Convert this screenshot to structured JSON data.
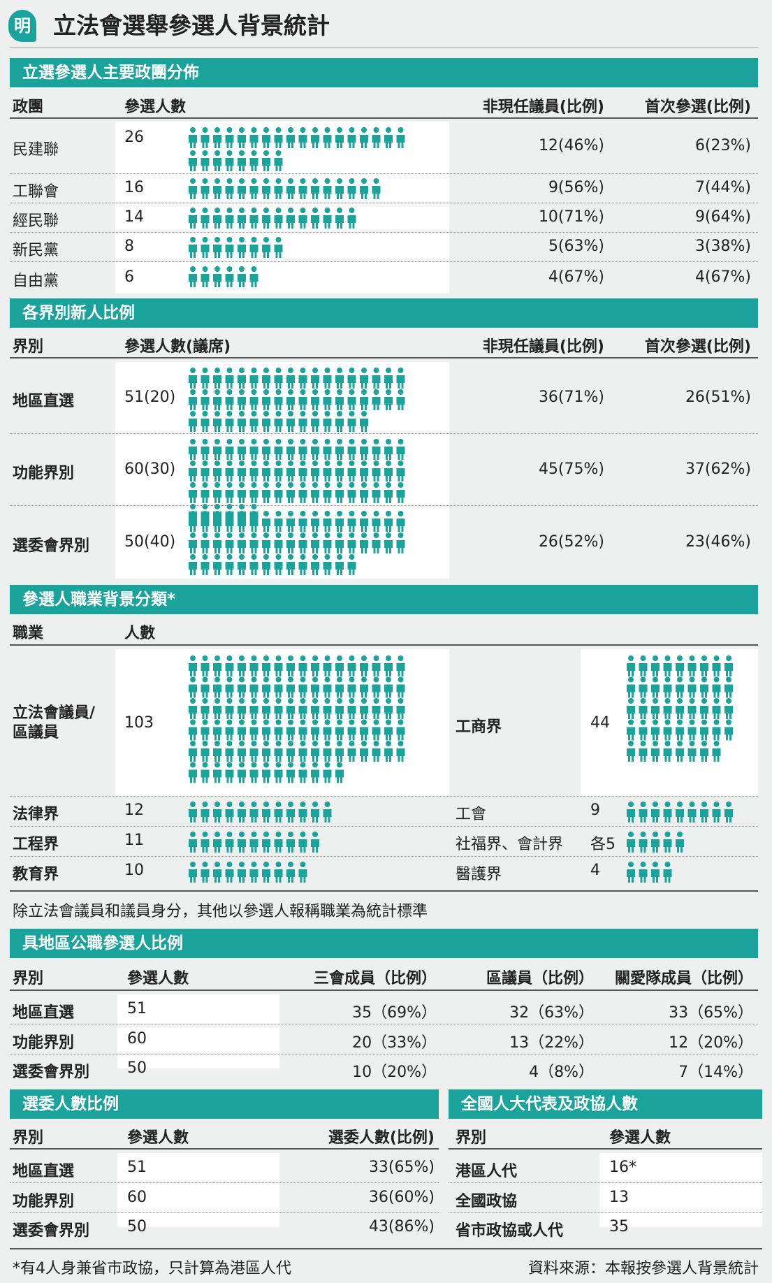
{
  "header": {
    "logo": "明",
    "title": "立法會選舉參選人背景統計"
  },
  "colors": {
    "accent": "#1aa39a",
    "icon": "#1aa39a"
  },
  "party": {
    "title": "立選參選人主要政團分佈",
    "columns": [
      "政團",
      "參選人數",
      "非現任議員(比例)",
      "首次參選(比例)"
    ],
    "rows": [
      {
        "name": "民建聯",
        "count": "26",
        "n": 26,
        "nonincumbent": "12(46%)",
        "first": "6(23%)"
      },
      {
        "name": "工聯會",
        "count": "16",
        "n": 16,
        "nonincumbent": "9(56%)",
        "first": "7(44%)"
      },
      {
        "name": "經民聯",
        "count": "14",
        "n": 14,
        "nonincumbent": "10(71%)",
        "first": "9(64%)"
      },
      {
        "name": "新民黨",
        "count": "8",
        "n": 8,
        "nonincumbent": "5(63%)",
        "first": "3(38%)"
      },
      {
        "name": "自由黨",
        "count": "6",
        "n": 6,
        "nonincumbent": "4(67%)",
        "first": "4(67%)"
      }
    ]
  },
  "sector": {
    "title": "各界別新人比例",
    "columns": [
      "界別",
      "參選人數(議席)",
      "非現任議員(比例)",
      "首次參選(比例)"
    ],
    "rows": [
      {
        "name": "地區直選",
        "count": "51(20)",
        "n": 51,
        "nonincumbent": "36(71%)",
        "first": "26(51%)"
      },
      {
        "name": "功能界別",
        "count": "60(30)",
        "n": 60,
        "nonincumbent": "45(75%)",
        "first": "37(62%)"
      },
      {
        "name": "選委會界別",
        "count": "50(40)",
        "n": 50,
        "nonincumbent": "26(52%)",
        "first": "23(46%)"
      }
    ]
  },
  "occupation": {
    "title": "參選人職業背景分類*",
    "columns": [
      "職業",
      "人數"
    ],
    "big_left": {
      "name_line1": "立法會議員/",
      "name_line2": "區議員",
      "count": "103",
      "n": 103
    },
    "big_right": {
      "name": "工商界",
      "count": "44",
      "n": 44
    },
    "rows": [
      {
        "left_name": "法律界",
        "left_count": "12",
        "left_n": 12,
        "right_name": "工會",
        "right_count": "9",
        "right_n": 9
      },
      {
        "left_name": "工程界",
        "left_count": "11",
        "left_n": 11,
        "right_name": "社福界、會計界",
        "right_count": "各5",
        "right_n": 5
      },
      {
        "left_name": "教育界",
        "left_count": "10",
        "left_n": 10,
        "right_name": "醫護界",
        "right_count": "4",
        "right_n": 4
      }
    ],
    "note": "除立法會議員和議員身分，其他以參選人報稱職業為統計標準"
  },
  "district": {
    "title": "具地區公職參選人比例",
    "columns": [
      "界別",
      "參選人數",
      "三會成員（比例）",
      "區議員（比例）",
      "關愛隊成員（比例）"
    ],
    "rows": [
      {
        "name": "地區直選",
        "count": "51",
        "three": "35（69%）",
        "dc": "32（63%）",
        "care": "33（65%）"
      },
      {
        "name": "功能界別",
        "count": "60",
        "three": "20（33%）",
        "dc": "13（22%）",
        "care": "12（20%）"
      },
      {
        "name": "選委會界別",
        "count": "50",
        "three": "10（20%）",
        "dc": "4（8%）",
        "care": "7（14%）"
      }
    ]
  },
  "ec": {
    "title": "選委人數比例",
    "columns": [
      "界別",
      "參選人數",
      "選委人數(比例)"
    ],
    "rows": [
      {
        "name": "地區直選",
        "count": "51",
        "ec": "33(65%)"
      },
      {
        "name": "功能界別",
        "count": "60",
        "ec": "36(60%)"
      },
      {
        "name": "選委會界別",
        "count": "50",
        "ec": "43(86%)"
      }
    ]
  },
  "npc": {
    "title": "全國人大代表及政協人數",
    "columns": [
      "界別",
      "參選人數"
    ],
    "rows": [
      {
        "name": "港區人代",
        "count": "16*"
      },
      {
        "name": "全國政協",
        "count": "13"
      },
      {
        "name": "省市政協或人代",
        "count": "35"
      }
    ]
  },
  "footer": {
    "note": "*有4人身兼省市政協，只計算為港區人代",
    "source": "資料來源：本報按參選人背景統計"
  },
  "chart_data": [
    {
      "type": "table",
      "title": "立選參選人主要政團分佈",
      "categories": [
        "民建聯",
        "工聯會",
        "經民聯",
        "新民黨",
        "自由黨"
      ],
      "series": [
        {
          "name": "參選人數",
          "values": [
            26,
            16,
            14,
            8,
            6
          ]
        },
        {
          "name": "非現任議員",
          "values": [
            12,
            9,
            10,
            5,
            4
          ]
        },
        {
          "name": "首次參選",
          "values": [
            6,
            7,
            9,
            3,
            4
          ]
        }
      ]
    },
    {
      "type": "table",
      "title": "各界別新人比例",
      "categories": [
        "地區直選",
        "功能界別",
        "選委會界別"
      ],
      "series": [
        {
          "name": "參選人數",
          "values": [
            51,
            60,
            50
          ]
        },
        {
          "name": "議席",
          "values": [
            20,
            30,
            40
          ]
        },
        {
          "name": "非現任議員",
          "values": [
            36,
            45,
            26
          ]
        },
        {
          "name": "首次參選",
          "values": [
            26,
            37,
            23
          ]
        }
      ]
    },
    {
      "type": "table",
      "title": "參選人職業背景分類*",
      "categories": [
        "立法會議員/區議員",
        "工商界",
        "法律界",
        "工會",
        "工程界",
        "社福界",
        "會計界",
        "教育界",
        "醫護界"
      ],
      "values": [
        103,
        44,
        12,
        9,
        11,
        5,
        5,
        10,
        4
      ]
    }
  ]
}
